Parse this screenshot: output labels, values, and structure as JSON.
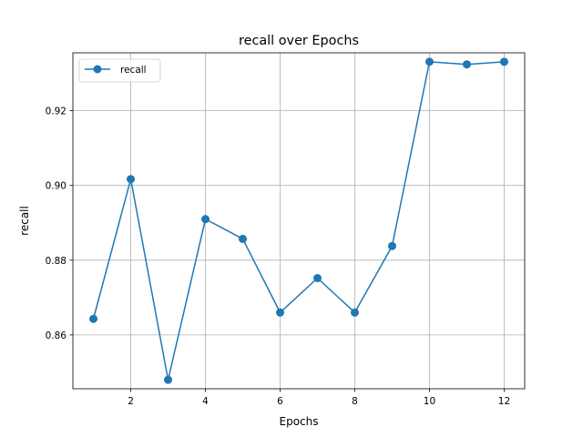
{
  "chart_data": {
    "type": "line",
    "title": "recall over Epochs",
    "xlabel": "Epochs",
    "ylabel": "recall",
    "x": [
      1,
      2,
      3,
      4,
      5,
      6,
      7,
      8,
      9,
      10,
      11,
      12
    ],
    "series": [
      {
        "name": "recall",
        "values": [
          0.8643,
          0.9017,
          0.848,
          0.891,
          0.8857,
          0.866,
          0.8752,
          0.866,
          0.8838,
          0.9331,
          0.9324,
          0.9331
        ],
        "color": "#1f77b4",
        "marker": "circle"
      }
    ],
    "xlim": [
      0.45,
      12.55
    ],
    "ylim": [
      0.8456,
      0.9355
    ],
    "xticks": [
      2,
      4,
      6,
      8,
      10,
      12
    ],
    "xtick_labels": [
      "2",
      "4",
      "6",
      "8",
      "10",
      "12"
    ],
    "yticks": [
      0.86,
      0.88,
      0.9,
      0.92
    ],
    "ytick_labels": [
      "0.86",
      "0.88",
      "0.90",
      "0.92"
    ],
    "grid": true,
    "legend_position": "top-left"
  }
}
